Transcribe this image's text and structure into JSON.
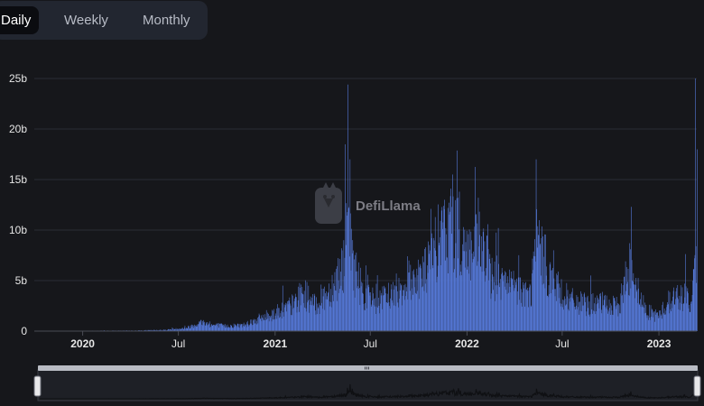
{
  "tabs": [
    {
      "label": "Daily",
      "active": true
    },
    {
      "label": "Weekly",
      "active": false
    },
    {
      "label": "Monthly",
      "active": false
    }
  ],
  "watermark": {
    "text": "DefiLlama",
    "icon": "llama-logo-icon"
  },
  "brush": {
    "handle_icon": "grip-icon"
  },
  "colors": {
    "bar": "#5578d6",
    "background": "#16171b",
    "grid": "#2b2d34",
    "brush": "#2a2c33"
  },
  "chart_data": {
    "type": "bar",
    "title": "",
    "xlabel": "",
    "ylabel": "",
    "x_range": [
      "2019-10-01",
      "2023-03-14"
    ],
    "ylim": [
      0,
      25
    ],
    "y_unit": "billions",
    "y_ticks": [
      {
        "label": "0",
        "value": 0
      },
      {
        "label": "5b",
        "value": 5
      },
      {
        "label": "10b",
        "value": 10
      },
      {
        "label": "15b",
        "value": 15
      },
      {
        "label": "20b",
        "value": 20
      },
      {
        "label": "25b",
        "value": 25
      }
    ],
    "x_ticks": [
      {
        "label": "2020",
        "date": "2020-01-01",
        "bold": true
      },
      {
        "label": "Jul",
        "date": "2020-07-01",
        "bold": false
      },
      {
        "label": "2021",
        "date": "2021-01-01",
        "bold": true
      },
      {
        "label": "Jul",
        "date": "2021-07-01",
        "bold": false
      },
      {
        "label": "2022",
        "date": "2022-01-01",
        "bold": true
      },
      {
        "label": "Jul",
        "date": "2022-07-01",
        "bold": false
      },
      {
        "label": "2023",
        "date": "2023-01-01",
        "bold": true
      }
    ],
    "grid": true,
    "series": [
      {
        "values_daily_estimated": true,
        "points": [
          [
            "2019-10-01",
            0.02
          ],
          [
            "2020-01-01",
            0.03
          ],
          [
            "2020-04-01",
            0.05
          ],
          [
            "2020-06-01",
            0.1
          ],
          [
            "2020-07-15",
            0.3
          ],
          [
            "2020-08-15",
            0.9
          ],
          [
            "2020-09-01",
            0.6
          ],
          [
            "2020-10-01",
            0.5
          ],
          [
            "2020-11-01",
            0.6
          ],
          [
            "2020-12-01",
            1.2
          ],
          [
            "2021-01-01",
            1.8
          ],
          [
            "2021-02-01",
            2.5
          ],
          [
            "2021-02-25",
            3.8
          ],
          [
            "2021-03-15",
            2.5
          ],
          [
            "2021-04-15",
            4.0
          ],
          [
            "2021-05-10",
            6.5
          ],
          [
            "2021-05-20",
            10.5
          ],
          [
            "2021-06-01",
            6.0
          ],
          [
            "2021-06-20",
            3.5
          ],
          [
            "2021-07-15",
            2.8
          ],
          [
            "2021-08-15",
            3.8
          ],
          [
            "2021-09-15",
            5.0
          ],
          [
            "2021-10-15",
            6.0
          ],
          [
            "2021-11-10",
            9.0
          ],
          [
            "2021-12-01",
            10.5
          ],
          [
            "2021-12-15",
            9.0
          ],
          [
            "2022-01-10",
            7.5
          ],
          [
            "2022-01-25",
            8.5
          ],
          [
            "2022-02-15",
            5.5
          ],
          [
            "2022-03-15",
            4.5
          ],
          [
            "2022-04-15",
            4.0
          ],
          [
            "2022-05-01",
            3.5
          ],
          [
            "2022-05-12",
            9.0
          ],
          [
            "2022-06-15",
            4.5
          ],
          [
            "2022-07-15",
            3.0
          ],
          [
            "2022-08-15",
            2.6
          ],
          [
            "2022-09-15",
            2.7
          ],
          [
            "2022-10-15",
            2.3
          ],
          [
            "2022-11-09",
            7.0
          ],
          [
            "2022-11-25",
            3.0
          ],
          [
            "2022-12-15",
            1.8
          ],
          [
            "2023-01-01",
            1.5
          ],
          [
            "2023-01-20",
            3.0
          ],
          [
            "2023-02-15",
            3.5
          ],
          [
            "2023-03-05",
            3.0
          ],
          [
            "2023-03-14",
            8.5
          ]
        ],
        "spikes": [
          [
            "2021-05-11",
            9.0
          ],
          [
            "2021-05-19",
            24.4
          ],
          [
            "2021-05-23",
            17.0
          ],
          [
            "2021-06-22",
            6.5
          ],
          [
            "2021-12-04",
            15.5
          ],
          [
            "2022-01-22",
            13.2
          ],
          [
            "2022-03-01",
            10.2
          ],
          [
            "2022-05-12",
            17.0
          ],
          [
            "2022-06-14",
            8.0
          ],
          [
            "2022-11-09",
            12.3
          ],
          [
            "2023-03-11",
            25.0
          ]
        ]
      }
    ]
  }
}
